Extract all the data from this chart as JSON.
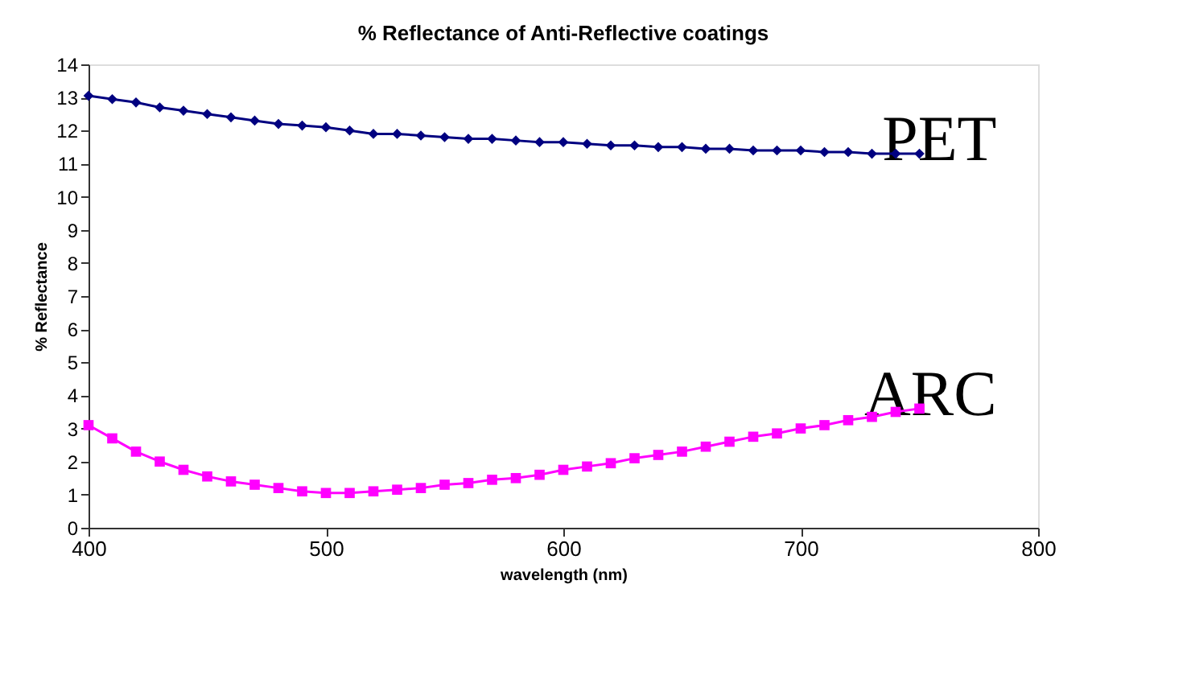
{
  "chart_data": {
    "type": "line",
    "title": "% Reflectance of Anti-Reflective coatings",
    "xlabel": "wavelength (nm)",
    "ylabel": "% Reflectance",
    "x": [
      400,
      410,
      420,
      430,
      440,
      450,
      460,
      470,
      480,
      490,
      500,
      510,
      520,
      530,
      540,
      550,
      560,
      570,
      580,
      590,
      600,
      610,
      620,
      630,
      640,
      650,
      660,
      670,
      680,
      690,
      700,
      710,
      720,
      730,
      740,
      750
    ],
    "series": [
      {
        "name": "PET",
        "color": "#000080",
        "marker": "diamond",
        "values": [
          13.05,
          12.95,
          12.85,
          12.7,
          12.6,
          12.5,
          12.4,
          12.3,
          12.2,
          12.15,
          12.1,
          12.0,
          11.9,
          11.9,
          11.85,
          11.8,
          11.75,
          11.75,
          11.7,
          11.65,
          11.65,
          11.6,
          11.55,
          11.55,
          11.5,
          11.5,
          11.45,
          11.45,
          11.4,
          11.4,
          11.4,
          11.35,
          11.35,
          11.3,
          11.3,
          11.3
        ]
      },
      {
        "name": "ARC",
        "color": "#ff00ff",
        "marker": "square",
        "values": [
          3.1,
          2.7,
          2.3,
          2.0,
          1.75,
          1.55,
          1.4,
          1.3,
          1.2,
          1.1,
          1.05,
          1.05,
          1.1,
          1.15,
          1.2,
          1.3,
          1.35,
          1.45,
          1.5,
          1.6,
          1.75,
          1.85,
          1.95,
          2.1,
          2.2,
          2.3,
          2.45,
          2.6,
          2.75,
          2.85,
          3.0,
          3.1,
          3.25,
          3.35,
          3.5,
          3.6
        ]
      }
    ],
    "xlim": [
      400,
      800
    ],
    "xticks": [
      400,
      500,
      600,
      700,
      800
    ],
    "ylim": [
      0,
      14
    ],
    "yticks": [
      0,
      1,
      2,
      3,
      4,
      5,
      6,
      7,
      8,
      9,
      10,
      11,
      12,
      13,
      14
    ],
    "grid": false
  }
}
